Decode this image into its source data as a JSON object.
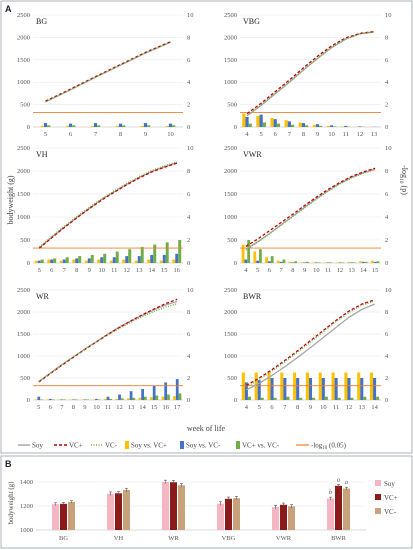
{
  "panel_labels": {
    "a": "A",
    "b": "B"
  },
  "axis_labels": {
    "left": "bodyweight (g)",
    "right": "-log",
    "right_sub": "10",
    "right_tail": " (p)",
    "bottom": "week of life",
    "b_left": "bodyweight (g)"
  },
  "legend": {
    "soy": "Soy",
    "vcplus": "VC+",
    "vcminus": "VC-",
    "soy_vs_vcplus": "Soy vs. VC+",
    "soy_vs_vcminus": "Soy vs. VC-",
    "vcplus_vs_vcminus": "VC+ vs. VC-",
    "threshold": "-log",
    "threshold_sub": "10",
    "threshold_tail": " (0.05)"
  },
  "colors": {
    "soy": "#a6a6a6",
    "vcplus": "#c00000",
    "vcminus": "#70ad47",
    "bar_soy_vcplus": "#ffc000",
    "bar_soy_vcminus": "#4472c4",
    "bar_vcplus_vcminus": "#70ad47",
    "threshold": "#ed7d31",
    "b_soy": "#f4b6c2",
    "b_vcplus": "#8b1a1a",
    "b_vcminus": "#c8a27a"
  },
  "chart_data": [
    {
      "type": "line",
      "panel": "BG",
      "title": "BG",
      "x": [
        5,
        6,
        7,
        8,
        9,
        10
      ],
      "ylim": [
        0,
        2500
      ],
      "yticks": [
        0,
        500,
        1000,
        1500,
        2000,
        2500
      ],
      "y2lim": [
        0,
        10
      ],
      "y2ticks": [
        0,
        2,
        4,
        6,
        8,
        10
      ],
      "threshold": 1.3,
      "series": [
        {
          "name": "Soy",
          "values": [
            560,
            830,
            1110,
            1380,
            1650,
            1890
          ]
        },
        {
          "name": "VC+",
          "values": [
            575,
            845,
            1125,
            1395,
            1665,
            1905
          ]
        },
        {
          "name": "VC-",
          "values": [
            560,
            835,
            1115,
            1385,
            1660,
            1895
          ]
        }
      ],
      "bars": [
        {
          "name": "Soy vs. VC+",
          "values": [
            0.1,
            0.1,
            0.1,
            0.1,
            0.1,
            0.1
          ]
        },
        {
          "name": "Soy vs. VC-",
          "values": [
            0.35,
            0.3,
            0.35,
            0.3,
            0.35,
            0.3
          ]
        },
        {
          "name": "VC+ vs. VC-",
          "values": [
            0.15,
            0.15,
            0.15,
            0.15,
            0.15,
            0.15
          ]
        }
      ]
    },
    {
      "type": "line",
      "panel": "VBG",
      "title": "VBG",
      "x": [
        4,
        5,
        6,
        7,
        8,
        9,
        10,
        11,
        12,
        13
      ],
      "ylim": [
        0,
        2500
      ],
      "yticks": [
        0,
        500,
        1000,
        1500,
        2000,
        2500
      ],
      "y2lim": [
        0,
        10
      ],
      "y2ticks": [
        0,
        2,
        4,
        6,
        8,
        10
      ],
      "threshold": 1.3,
      "series": [
        {
          "name": "Soy",
          "values": [
            250,
            480,
            740,
            1000,
            1270,
            1530,
            1770,
            1960,
            2080,
            2120
          ]
        },
        {
          "name": "VC+",
          "values": [
            300,
            530,
            790,
            1050,
            1320,
            1580,
            1810,
            1990,
            2090,
            2130
          ]
        },
        {
          "name": "VC-",
          "values": [
            260,
            490,
            750,
            1010,
            1280,
            1540,
            1780,
            1970,
            2085,
            2125
          ]
        }
      ],
      "bars": [
        {
          "name": "Soy vs. VC+",
          "values": [
            1.2,
            1.0,
            0.8,
            0.6,
            0.4,
            0.2,
            0.1,
            0.05,
            0.02,
            0.01
          ]
        },
        {
          "name": "Soy vs. VC-",
          "values": [
            0.9,
            1.1,
            0.7,
            0.5,
            0.35,
            0.25,
            0.15,
            0.1,
            0.05,
            0.02
          ]
        },
        {
          "name": "VC+ vs. VC-",
          "values": [
            0.3,
            0.4,
            0.3,
            0.2,
            0.15,
            0.1,
            0.05,
            0.03,
            0.02,
            0.01
          ]
        }
      ]
    },
    {
      "type": "line",
      "panel": "VH",
      "title": "VH",
      "x": [
        5,
        6,
        7,
        8,
        9,
        10,
        11,
        12,
        13,
        14,
        15,
        16
      ],
      "ylim": [
        0,
        2500
      ],
      "yticks": [
        0,
        500,
        1000,
        1500,
        2000,
        2500
      ],
      "y2lim": [
        0,
        10
      ],
      "y2ticks": [
        0,
        2,
        4,
        6,
        8,
        10
      ],
      "threshold": 1.3,
      "series": [
        {
          "name": "Soy",
          "values": [
            330,
            560,
            780,
            990,
            1190,
            1380,
            1550,
            1710,
            1860,
            1990,
            2090,
            2180
          ]
        },
        {
          "name": "VC+",
          "values": [
            320,
            550,
            770,
            980,
            1180,
            1370,
            1540,
            1700,
            1850,
            1980,
            2080,
            2170
          ]
        },
        {
          "name": "VC-",
          "values": [
            350,
            580,
            800,
            1010,
            1210,
            1400,
            1570,
            1730,
            1880,
            2010,
            2110,
            2200
          ]
        }
      ],
      "bars": [
        {
          "name": "Soy vs. VC+",
          "values": [
            0.2,
            0.3,
            0.2,
            0.3,
            0.2,
            0.3,
            0.2,
            0.3,
            0.2,
            0.3,
            0.2,
            0.3
          ]
        },
        {
          "name": "Soy vs. VC-",
          "values": [
            0.2,
            0.3,
            0.3,
            0.4,
            0.4,
            0.5,
            0.5,
            0.6,
            0.6,
            0.7,
            0.7,
            0.8
          ]
        },
        {
          "name": "VC+ vs. VC-",
          "values": [
            0.3,
            0.4,
            0.5,
            0.6,
            0.7,
            0.8,
            1.0,
            1.2,
            1.4,
            1.6,
            1.8,
            2.0
          ]
        }
      ]
    },
    {
      "type": "line",
      "panel": "VWR",
      "title": "VWR",
      "x": [
        4,
        5,
        6,
        7,
        8,
        9,
        10,
        11,
        12,
        13,
        14,
        15
      ],
      "ylim": [
        0,
        2500
      ],
      "yticks": [
        0,
        500,
        1000,
        1500,
        2000,
        2500
      ],
      "y2lim": [
        0,
        10
      ],
      "y2ticks": [
        0,
        2,
        4,
        6,
        8,
        10
      ],
      "threshold": 1.3,
      "series": [
        {
          "name": "Soy",
          "values": [
            300,
            460,
            640,
            830,
            1020,
            1210,
            1400,
            1570,
            1730,
            1860,
            1960,
            2040
          ]
        },
        {
          "name": "VC+",
          "values": [
            360,
            520,
            700,
            880,
            1060,
            1250,
            1430,
            1600,
            1750,
            1880,
            1980,
            2060
          ]
        },
        {
          "name": "VC-",
          "values": [
            280,
            450,
            630,
            820,
            1010,
            1200,
            1390,
            1560,
            1720,
            1850,
            1950,
            2030
          ]
        }
      ],
      "bars": [
        {
          "name": "Soy vs. VC+",
          "values": [
            1.6,
            1.0,
            0.5,
            0.2,
            0.1,
            0.05,
            0.05,
            0.05,
            0.05,
            0.1,
            0.15,
            0.2
          ]
        },
        {
          "name": "Soy vs. VC-",
          "values": [
            0.3,
            0.2,
            0.15,
            0.1,
            0.05,
            0.05,
            0.05,
            0.05,
            0.05,
            0.05,
            0.1,
            0.1
          ]
        },
        {
          "name": "VC+ vs. VC-",
          "values": [
            2.0,
            1.2,
            0.6,
            0.3,
            0.15,
            0.1,
            0.05,
            0.05,
            0.05,
            0.05,
            0.1,
            0.15
          ]
        }
      ]
    },
    {
      "type": "line",
      "panel": "WR",
      "title": "WR",
      "x": [
        5,
        6,
        7,
        8,
        9,
        10,
        11,
        12,
        13,
        14,
        15,
        16,
        17
      ],
      "ylim": [
        0,
        2500
      ],
      "yticks": [
        0,
        500,
        1000,
        1500,
        2000,
        2500
      ],
      "y2lim": [
        0,
        10
      ],
      "y2ticks": [
        0,
        2,
        4,
        6,
        8,
        10
      ],
      "threshold": 1.3,
      "series": [
        {
          "name": "Soy",
          "values": [
            420,
            610,
            800,
            980,
            1160,
            1330,
            1500,
            1660,
            1800,
            1930,
            2050,
            2160,
            2240
          ]
        },
        {
          "name": "VC+",
          "values": [
            410,
            600,
            790,
            970,
            1150,
            1320,
            1490,
            1650,
            1800,
            1940,
            2070,
            2190,
            2290
          ]
        },
        {
          "name": "VC-",
          "values": [
            420,
            610,
            800,
            980,
            1150,
            1320,
            1480,
            1630,
            1770,
            1900,
            2010,
            2110,
            2190
          ]
        }
      ],
      "bars": [
        {
          "name": "Soy vs. VC+",
          "values": [
            0.05,
            0.05,
            0.05,
            0.05,
            0.05,
            0.05,
            0.1,
            0.1,
            0.15,
            0.2,
            0.25,
            0.3,
            0.35
          ]
        },
        {
          "name": "Soy vs. VC-",
          "values": [
            0.3,
            0.1,
            0.05,
            0.05,
            0.05,
            0.1,
            0.3,
            0.5,
            0.8,
            1.0,
            1.3,
            1.6,
            1.9
          ]
        },
        {
          "name": "VC+ vs. VC-",
          "values": [
            0.05,
            0.05,
            0.05,
            0.05,
            0.05,
            0.05,
            0.1,
            0.15,
            0.2,
            0.3,
            0.4,
            0.5,
            0.6
          ]
        }
      ]
    },
    {
      "type": "line",
      "panel": "BWR",
      "title": "BWR",
      "x": [
        4,
        5,
        6,
        7,
        8,
        9,
        10,
        11,
        12,
        13,
        14
      ],
      "ylim": [
        0,
        2500
      ],
      "yticks": [
        0,
        500,
        1000,
        1500,
        2000,
        2500
      ],
      "y2lim": [
        0,
        10
      ],
      "y2ticks": [
        0,
        2,
        4,
        6,
        8,
        10
      ],
      "threshold": 1.3,
      "series": [
        {
          "name": "Soy",
          "values": [
            230,
            380,
            560,
            760,
            970,
            1190,
            1420,
            1650,
            1880,
            2060,
            2180
          ]
        },
        {
          "name": "VC+",
          "values": [
            330,
            500,
            690,
            900,
            1120,
            1350,
            1580,
            1810,
            2020,
            2180,
            2280
          ]
        },
        {
          "name": "VC-",
          "values": [
            300,
            470,
            660,
            870,
            1090,
            1320,
            1550,
            1780,
            1990,
            2150,
            2250
          ]
        }
      ],
      "bars": [
        {
          "name": "Soy vs. VC+",
          "values": [
            2.5,
            2.5,
            2.5,
            2.5,
            2.5,
            2.5,
            2.5,
            2.5,
            2.5,
            2.5,
            2.5
          ]
        },
        {
          "name": "Soy vs. VC-",
          "values": [
            1.6,
            1.8,
            2.0,
            2.0,
            2.0,
            2.0,
            2.0,
            2.0,
            2.0,
            2.0,
            2.0
          ]
        },
        {
          "name": "VC+ vs. VC-",
          "values": [
            0.3,
            0.2,
            0.2,
            0.3,
            0.2,
            0.2,
            0.3,
            0.2,
            0.2,
            0.3,
            0.3
          ]
        }
      ]
    },
    {
      "type": "bar",
      "panel": "B",
      "categories": [
        "BG",
        "VH",
        "WR",
        "VBG",
        "VWR",
        "BWR"
      ],
      "ylim": [
        1000,
        1500
      ],
      "yticks": [
        1000,
        1200,
        1400
      ],
      "ylabel": "bodyweight (g)",
      "series": [
        {
          "name": "Soy",
          "values": [
            1215,
            1302,
            1400,
            1220,
            1190,
            1262
          ],
          "errors": [
            12,
            15,
            15,
            15,
            15,
            12
          ]
        },
        {
          "name": "VC+",
          "values": [
            1218,
            1306,
            1398,
            1260,
            1210,
            1368
          ],
          "errors": [
            12,
            15,
            15,
            15,
            15,
            12
          ]
        },
        {
          "name": "VC-",
          "values": [
            1234,
            1333,
            1372,
            1265,
            1197,
            1345
          ],
          "errors": [
            10,
            15,
            15,
            15,
            15,
            12
          ]
        }
      ],
      "annotations": [
        {
          "category": "BWR",
          "series": "Soy",
          "text": "b"
        },
        {
          "category": "BWR",
          "series": "VC+",
          "text": "a"
        },
        {
          "category": "BWR",
          "series": "VC-",
          "text": "a"
        }
      ]
    }
  ]
}
